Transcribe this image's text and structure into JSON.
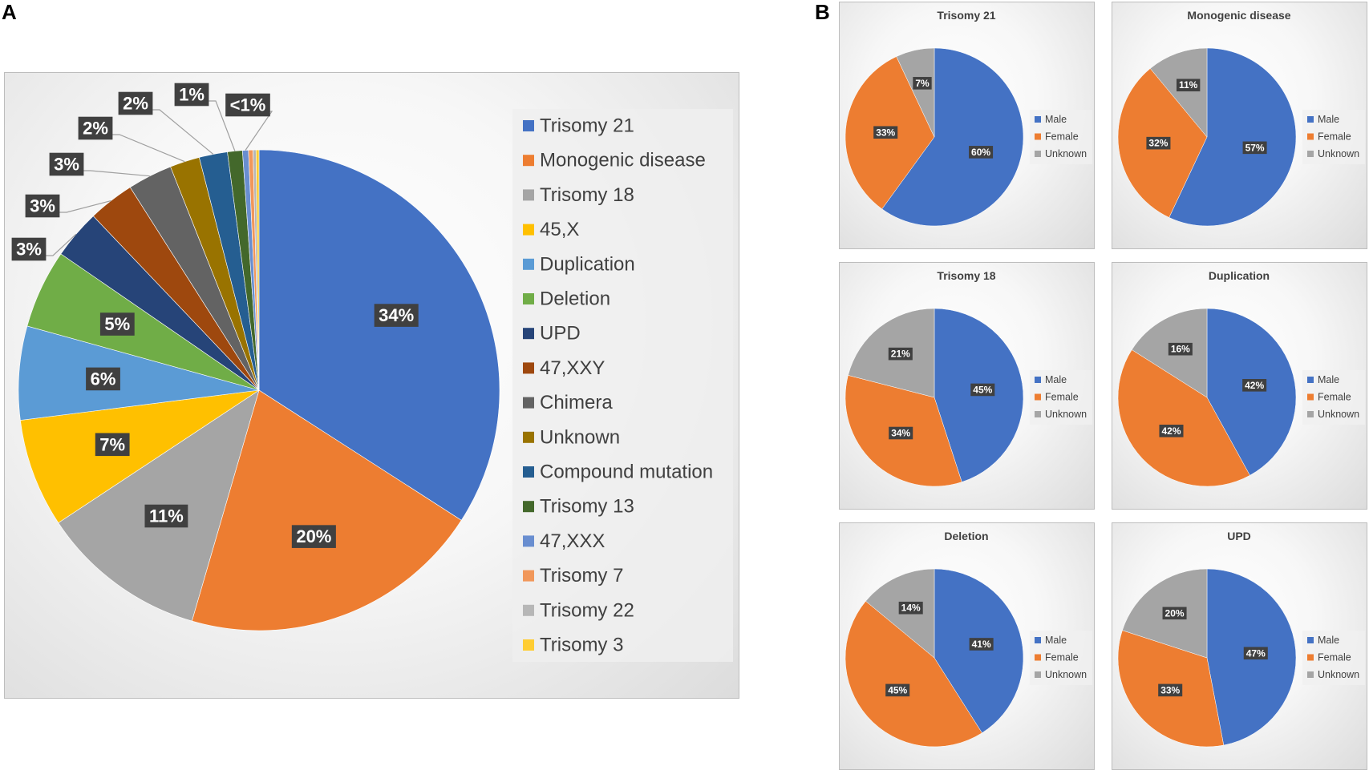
{
  "panels": {
    "a": "A",
    "b": "B"
  },
  "colors": {
    "blue": "#4472c4",
    "orange": "#ed7d31",
    "gray": "#a5a5a5",
    "yellow": "#ffc000",
    "lightblue": "#5b9bd5",
    "green": "#70ad47",
    "navy": "#264478",
    "brown": "#9e480e",
    "darkgray": "#636363",
    "olive": "#997300",
    "steel": "#255e91",
    "darkgreen": "#43682b",
    "periwinkle": "#698ed0",
    "salmon": "#f1975a",
    "silver": "#b7b7b7",
    "gold": "#ffcd33"
  },
  "chart_data": [
    {
      "id": "A",
      "type": "pie",
      "title": "",
      "legend_position": "right",
      "categories": [
        "Trisomy 21",
        "Monogenic disease",
        "Trisomy 18",
        "45,X",
        "Duplication",
        "Deletion",
        "UPD",
        "47,XXY",
        "Chimera",
        "Unknown",
        "Compound mutation",
        "Trisomy 13",
        "47,XXX",
        "Trisomy 7",
        "Trisomy 22",
        "Trisomy 3"
      ],
      "values": [
        34.1,
        20.4,
        11.2,
        7.3,
        6.3,
        5.3,
        3.3,
        3.1,
        3.0,
        2.0,
        1.9,
        1.0,
        0.4,
        0.3,
        0.2,
        0.2
      ],
      "labels": [
        "34%",
        "20%",
        "11%",
        "7%",
        "6%",
        "5%",
        "3%",
        "3%",
        "3%",
        "2%",
        "2%",
        "1%",
        "<1%",
        "",
        "",
        ""
      ],
      "colors": [
        "#4472c4",
        "#ed7d31",
        "#a5a5a5",
        "#ffc000",
        "#5b9bd5",
        "#70ad47",
        "#264478",
        "#9e480e",
        "#636363",
        "#997300",
        "#255e91",
        "#43682b",
        "#698ed0",
        "#f1975a",
        "#b7b7b7",
        "#ffcd33"
      ]
    },
    {
      "id": "B1",
      "type": "pie",
      "title": "Trisomy 21",
      "legend_position": "right",
      "categories": [
        "Male",
        "Female",
        "Unknown"
      ],
      "values": [
        60,
        33,
        7
      ],
      "labels": [
        "60%",
        "33%",
        "7%"
      ]
    },
    {
      "id": "B2",
      "type": "pie",
      "title": "Monogenic disease",
      "legend_position": "right",
      "categories": [
        "Male",
        "Female",
        "Unknown"
      ],
      "values": [
        57,
        32,
        11
      ],
      "labels": [
        "57%",
        "32%",
        "11%"
      ]
    },
    {
      "id": "B3",
      "type": "pie",
      "title": "Trisomy 18",
      "legend_position": "right",
      "categories": [
        "Male",
        "Female",
        "Unknown"
      ],
      "values": [
        45,
        34,
        21
      ],
      "labels": [
        "45%",
        "34%",
        "21%"
      ]
    },
    {
      "id": "B4",
      "type": "pie",
      "title": "Duplication",
      "legend_position": "right",
      "categories": [
        "Male",
        "Female",
        "Unknown"
      ],
      "values": [
        42,
        42,
        16
      ],
      "labels": [
        "42%",
        "42%",
        "16%"
      ]
    },
    {
      "id": "B5",
      "type": "pie",
      "title": "Deletion",
      "legend_position": "right",
      "categories": [
        "Male",
        "Female",
        "Unknown"
      ],
      "values": [
        41,
        45,
        14
      ],
      "labels": [
        "41%",
        "45%",
        "14%"
      ]
    },
    {
      "id": "B6",
      "type": "pie",
      "title": "UPD",
      "legend_position": "right",
      "categories": [
        "Male",
        "Female",
        "Unknown"
      ],
      "values": [
        47,
        33,
        20
      ],
      "labels": [
        "47%",
        "33%",
        "20%"
      ]
    }
  ]
}
